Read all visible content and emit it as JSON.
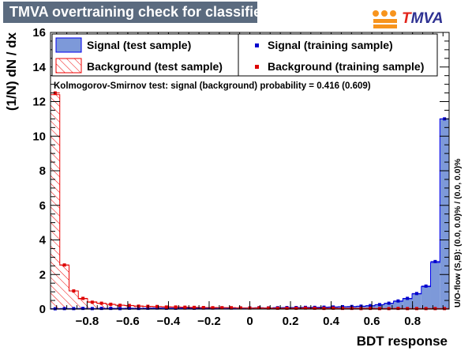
{
  "header": {
    "title": "TMVA overtraining check for classifier: BDT",
    "logo_text_t": "T",
    "logo_text_rest": "MVA"
  },
  "colors": {
    "title_bg": "#5b6b7f",
    "signal_fill": "#7d99d9",
    "signal_line": "#0000ee",
    "background_line": "#ee0000",
    "signal_marker": "#0000cc",
    "background_marker": "#dd0000"
  },
  "chart_data": {
    "type": "bar",
    "xlabel": "BDT response",
    "ylabel": "(1/N) dN  /  dx",
    "xlim": [
      -0.98,
      0.98
    ],
    "ylim": [
      0,
      16
    ],
    "x_ticks": [
      -0.8,
      -0.6,
      -0.4,
      -0.2,
      0,
      0.2,
      0.4,
      0.6,
      0.8
    ],
    "x_tick_labels": [
      "−0.8",
      "−0.6",
      "−0.4",
      "−0.2",
      "0",
      "0.2",
      "0.4",
      "0.6",
      "0.8"
    ],
    "y_ticks": [
      0,
      2,
      4,
      6,
      8,
      10,
      12,
      14,
      16
    ],
    "y_tick_labels": [
      "0",
      "2",
      "4",
      "6",
      "8",
      "10",
      "12",
      "14",
      "16"
    ],
    "legend": {
      "signal_test": "Signal (test sample)",
      "background_test": "Background (test sample)",
      "signal_train": "Signal (training sample)",
      "background_train": "Background (training sample)"
    },
    "ks_text": "Kolmogorov-Smirnov test: signal (background) probability = 0.416 (0.609)",
    "overflow_text": "U/O-flow (S,B): (0.0, 0.0)% / (0.0, 0.0)%",
    "series": [
      {
        "name": "Signal (test sample)",
        "values": [
          0.03,
          0.03,
          0.03,
          0.03,
          0.03,
          0.03,
          0.04,
          0.04,
          0.04,
          0.04,
          0.05,
          0.05,
          0.05,
          0.05,
          0.05,
          0.05,
          0.05,
          0.06,
          0.06,
          0.06,
          0.06,
          0.07,
          0.07,
          0.07,
          0.08,
          0.08,
          0.09,
          0.09,
          0.1,
          0.11,
          0.12,
          0.13,
          0.14,
          0.16,
          0.19,
          0.25,
          0.33,
          0.45,
          0.6,
          0.88,
          1.3,
          2.7,
          11.0
        ]
      },
      {
        "name": "Background (test sample)",
        "values": [
          12.4,
          2.55,
          1.05,
          0.6,
          0.42,
          0.33,
          0.27,
          0.23,
          0.2,
          0.18,
          0.16,
          0.14,
          0.13,
          0.12,
          0.11,
          0.1,
          0.09,
          0.09,
          0.08,
          0.08,
          0.07,
          0.07,
          0.06,
          0.06,
          0.06,
          0.05,
          0.05,
          0.05,
          0.05,
          0.04,
          0.04,
          0.04,
          0.04,
          0.04,
          0.04,
          0.03,
          0.03,
          0.03,
          0.03,
          0.03,
          0.03,
          0.03,
          0.03
        ]
      },
      {
        "name": "Signal (training sample)",
        "values": [
          0.02,
          0.03,
          0.03,
          0.04,
          0.03,
          0.04,
          0.04,
          0.03,
          0.05,
          0.04,
          0.05,
          0.06,
          0.05,
          0.05,
          0.06,
          0.05,
          0.06,
          0.06,
          0.07,
          0.06,
          0.07,
          0.07,
          0.08,
          0.07,
          0.08,
          0.09,
          0.09,
          0.1,
          0.1,
          0.11,
          0.12,
          0.14,
          0.15,
          0.17,
          0.2,
          0.26,
          0.34,
          0.47,
          0.62,
          0.9,
          1.33,
          2.75,
          11.0
        ]
      },
      {
        "name": "Background (training sample)",
        "values": [
          12.5,
          2.55,
          1.05,
          0.62,
          0.4,
          0.34,
          0.28,
          0.22,
          0.21,
          0.17,
          0.16,
          0.15,
          0.12,
          0.12,
          0.11,
          0.1,
          0.09,
          0.08,
          0.08,
          0.08,
          0.07,
          0.06,
          0.07,
          0.06,
          0.05,
          0.05,
          0.05,
          0.06,
          0.05,
          0.04,
          0.05,
          0.04,
          0.04,
          0.03,
          0.04,
          0.03,
          0.03,
          0.04,
          0.03,
          0.03,
          0.03,
          0.03,
          0.03
        ]
      }
    ]
  }
}
